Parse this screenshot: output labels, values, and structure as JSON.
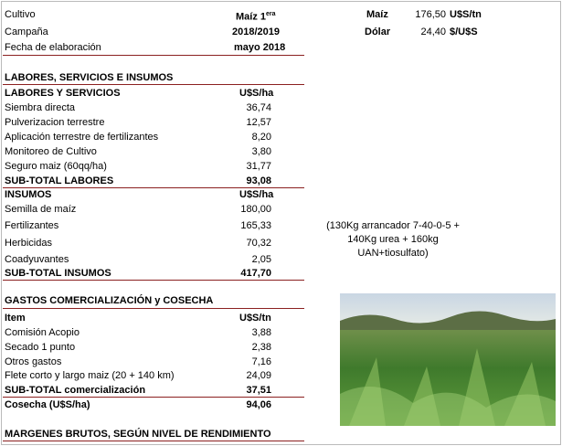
{
  "header": {
    "cultivo_label": "Cultivo",
    "cultivo_value": "Maíz 1",
    "cultivo_sup": "era",
    "campana_label": "Campaña",
    "campana_value": "2018/2019",
    "fecha_label": "Fecha de elaboración",
    "fecha_value": "mayo 2018",
    "precio_label": "Maíz",
    "precio_value": "176,50",
    "precio_unit": "U$S/tn",
    "dolar_label": "Dólar",
    "dolar_value": "24,40",
    "dolar_unit": "$/U$S"
  },
  "section_title": "LABORES, SERVICIOS E INSUMOS",
  "labores": {
    "label": "LABORES Y SERVICIOS",
    "unit": "U$S/ha",
    "rows": [
      {
        "label": "Siembra  directa",
        "value": "36,74"
      },
      {
        "label": "Pulverizacion terrestre",
        "value": "12,57"
      },
      {
        "label": "Aplicación terrestre de fertilizantes",
        "value": "8,20"
      },
      {
        "label": "Monitoreo de Cultivo",
        "value": "3,80"
      },
      {
        "label": "Seguro maiz (60qq/ha)",
        "value": "31,77"
      }
    ],
    "subtotal": {
      "label": "SUB-TOTAL LABORES",
      "value": "93,08"
    }
  },
  "insumos": {
    "label": "INSUMOS",
    "unit": "U$S/ha",
    "rows": [
      {
        "label": "Semilla de maíz",
        "value": "180,00"
      },
      {
        "label": "Fertilizantes",
        "value": "165,33"
      },
      {
        "label": "Herbicidas",
        "value": "70,32"
      },
      {
        "label": "Coadyuvantes",
        "value": "2,05"
      }
    ],
    "subtotal": {
      "label": "SUB-TOTAL INSUMOS",
      "value": "417,70"
    },
    "note": [
      "(130Kg arrancador 7-40-0-5 +",
      "140Kg urea + 160kg",
      "UAN+tiosulfato)"
    ]
  },
  "comercializacion": {
    "title": "GASTOS COMERCIALIZACIÓN y COSECHA",
    "label": "Item",
    "unit": "U$S/tn",
    "rows": [
      {
        "label": "Comisión Acopio",
        "value": "3,88"
      },
      {
        "label": "Secado 1 punto",
        "value": "2,38"
      },
      {
        "label": "Otros gastos",
        "value": "7,16"
      },
      {
        "label": "Flete corto y largo maiz  (20 + 140 km)",
        "value": "24,09"
      }
    ],
    "subtotal": {
      "label": "SUB-TOTAL comercialización",
      "value": "37,51"
    },
    "cosecha": {
      "label": "Cosecha  (U$S/ha)",
      "value": "94,06"
    }
  },
  "margenes_title": "MARGENES BRUTOS, SEGÚN NIVEL DE RENDIMIENTO"
}
